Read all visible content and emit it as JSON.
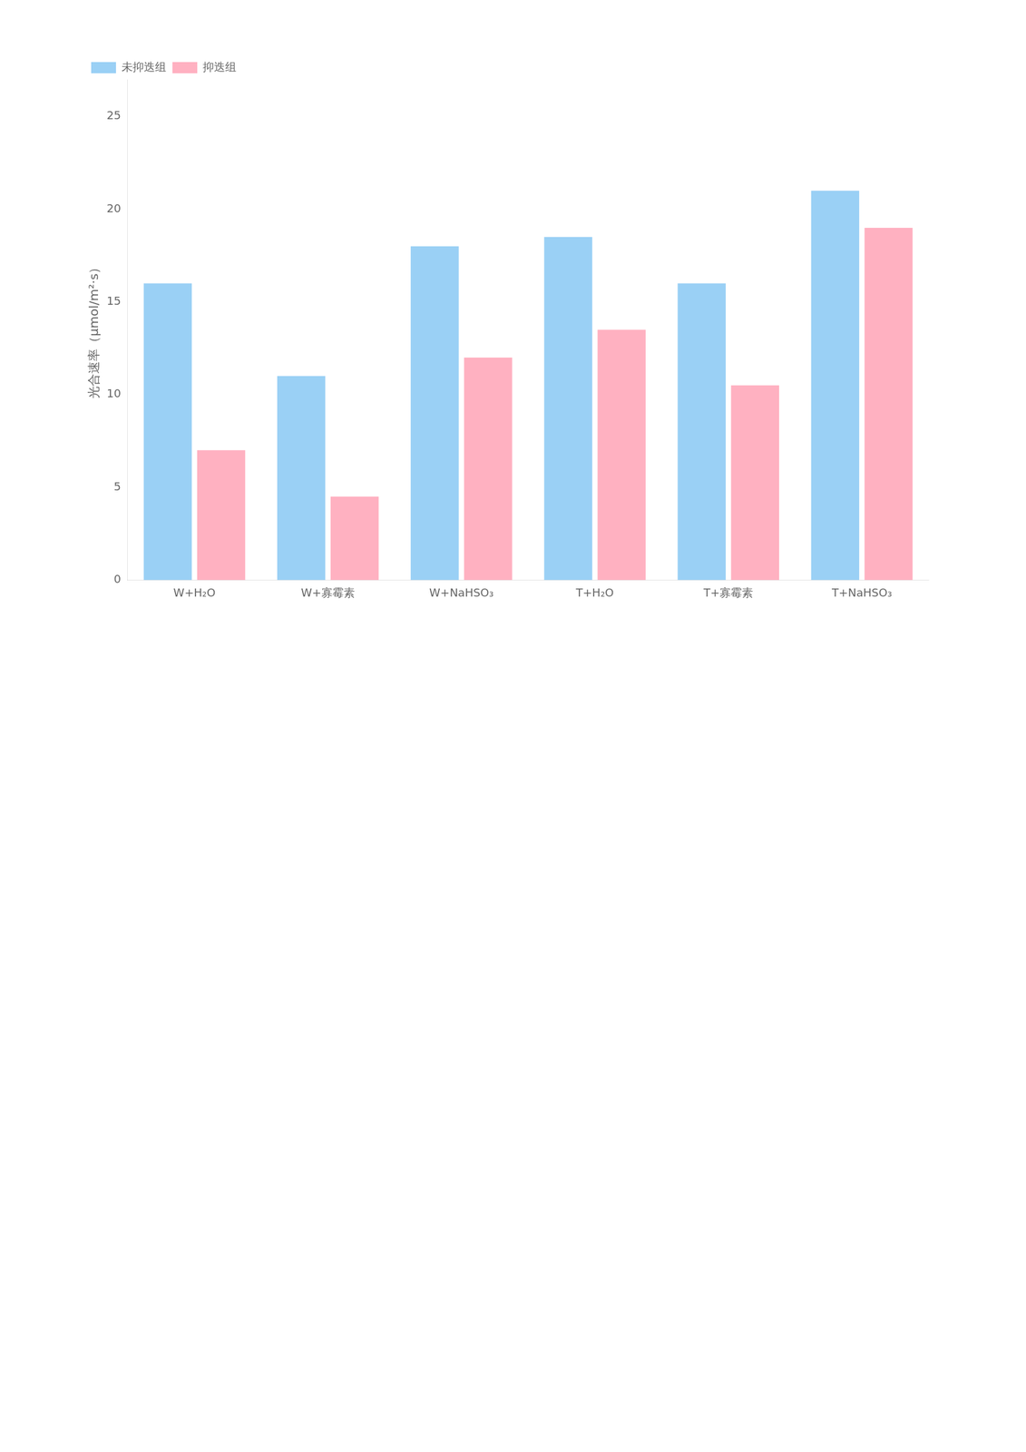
{
  "chart_data": {
    "type": "bar",
    "y_label": "光合速率（μmol/m²·s）",
    "categories": [
      "W+H₂O",
      "W+寡霉素",
      "W+NaHSO₃",
      "T+H₂O",
      "T+寡霉素",
      "T+NaHSO₃"
    ],
    "series": [
      {
        "name": "未抑迭组",
        "values": [
          16,
          11,
          18,
          18.5,
          16,
          21
        ]
      },
      {
        "name": "抑迭组",
        "values": [
          7,
          4.5,
          12,
          13.5,
          10.5,
          19
        ]
      }
    ],
    "ylim": [
      0,
      27
    ],
    "yticks": [
      0,
      5,
      10,
      15,
      20,
      25
    ],
    "grid": false,
    "legend": "upper left"
  }
}
